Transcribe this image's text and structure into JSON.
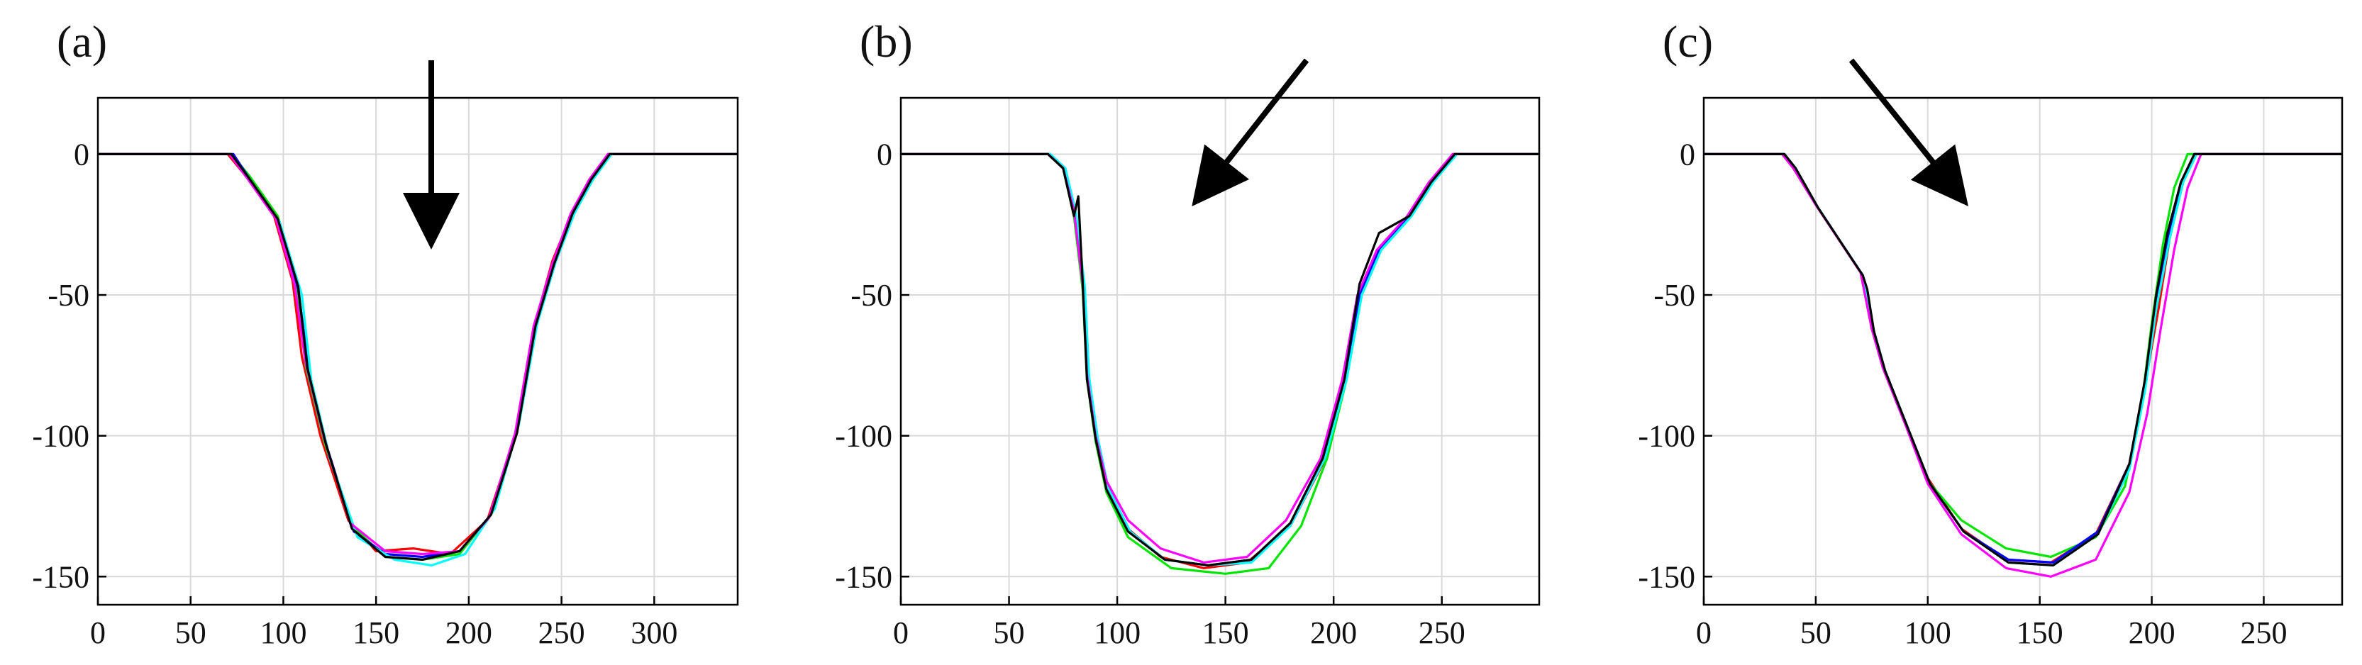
{
  "colors": {
    "red": "#ff0000",
    "green": "#00e600",
    "blue": "#0000ff",
    "cyan": "#00ffff",
    "magenta": "#ff00ff",
    "black": "#000000",
    "grid": "#d9d9d9",
    "arrow": "#000000"
  },
  "chart_data": [
    {
      "type": "line",
      "panel_label": "(a)",
      "arrow": "down",
      "grid": true,
      "xlim": [
        0,
        345
      ],
      "ylim": [
        -160,
        20
      ],
      "xticks": [
        0,
        50,
        100,
        150,
        200,
        250,
        300
      ],
      "yticks": [
        0,
        -50,
        -100,
        -150
      ],
      "series": [
        {
          "color": "red",
          "x": [
            0,
            70,
            80,
            95,
            105,
            110,
            120,
            135,
            150,
            170,
            190,
            210,
            225,
            235,
            245,
            255,
            265,
            275,
            345
          ],
          "y": [
            0,
            0,
            -8,
            -22,
            -45,
            -72,
            -100,
            -130,
            -141,
            -140,
            -142,
            -130,
            -100,
            -62,
            -38,
            -22,
            -10,
            0,
            0
          ]
        },
        {
          "color": "green",
          "x": [
            0,
            72,
            82,
            97,
            107,
            112,
            122,
            137,
            155,
            175,
            195,
            212,
            226,
            236,
            246,
            256,
            266,
            276,
            345
          ],
          "y": [
            0,
            0,
            -8,
            -22,
            -45,
            -75,
            -102,
            -132,
            -143,
            -144,
            -142,
            -128,
            -98,
            -60,
            -38,
            -20,
            -10,
            0,
            0
          ]
        },
        {
          "color": "blue",
          "x": [
            0,
            73,
            83,
            98,
            108,
            114,
            124,
            138,
            155,
            175,
            195,
            212,
            225,
            235,
            245,
            255,
            265,
            276,
            345
          ],
          "y": [
            0,
            0,
            -10,
            -24,
            -48,
            -78,
            -105,
            -134,
            -142,
            -143,
            -141,
            -128,
            -100,
            -62,
            -40,
            -22,
            -9,
            0,
            0
          ]
        },
        {
          "color": "cyan",
          "x": [
            0,
            72,
            82,
            98,
            110,
            115,
            125,
            140,
            160,
            180,
            198,
            214,
            227,
            237,
            247,
            257,
            267,
            277,
            345
          ],
          "y": [
            0,
            0,
            -9,
            -24,
            -50,
            -80,
            -108,
            -136,
            -144,
            -146,
            -142,
            -126,
            -96,
            -60,
            -38,
            -21,
            -9,
            0,
            0
          ]
        },
        {
          "color": "magenta",
          "x": [
            0,
            71,
            81,
            96,
            106,
            112,
            122,
            136,
            155,
            175,
            195,
            211,
            225,
            235,
            245,
            255,
            265,
            275,
            345
          ],
          "y": [
            0,
            0,
            -9,
            -23,
            -46,
            -74,
            -101,
            -131,
            -141,
            -142,
            -141,
            -129,
            -99,
            -61,
            -39,
            -21,
            -9,
            0,
            0
          ]
        },
        {
          "color": "black",
          "x": [
            0,
            72,
            82,
            97,
            108,
            113,
            123,
            137,
            155,
            175,
            195,
            212,
            226,
            236,
            246,
            256,
            266,
            276,
            345
          ],
          "y": [
            0,
            0,
            -9,
            -23,
            -47,
            -76,
            -103,
            -133,
            -143,
            -144,
            -141,
            -128,
            -99,
            -61,
            -39,
            -21,
            -9,
            0,
            0
          ]
        }
      ]
    },
    {
      "type": "line",
      "panel_label": "(b)",
      "arrow": "down-left",
      "grid": true,
      "xlim": [
        0,
        295
      ],
      "ylim": [
        -160,
        20
      ],
      "xticks": [
        0,
        50,
        100,
        150,
        200,
        250
      ],
      "yticks": [
        0,
        -50,
        -100,
        -150
      ],
      "series": [
        {
          "color": "red",
          "x": [
            0,
            68,
            75,
            80,
            84,
            86,
            90,
            95,
            105,
            120,
            140,
            160,
            180,
            195,
            205,
            212,
            220,
            235,
            245,
            255,
            295
          ],
          "y": [
            0,
            0,
            -5,
            -20,
            -45,
            -78,
            -100,
            -118,
            -133,
            -143,
            -147,
            -145,
            -132,
            -110,
            -82,
            -50,
            -35,
            -22,
            -10,
            0,
            0
          ]
        },
        {
          "color": "green",
          "x": [
            0,
            68,
            75,
            80,
            84,
            86,
            90,
            95,
            105,
            125,
            150,
            170,
            185,
            197,
            206,
            213,
            222,
            236,
            246,
            256,
            295
          ],
          "y": [
            0,
            0,
            -5,
            -22,
            -48,
            -80,
            -102,
            -120,
            -136,
            -147,
            -149,
            -147,
            -132,
            -108,
            -80,
            -50,
            -34,
            -22,
            -10,
            0,
            0
          ]
        },
        {
          "color": "blue",
          "x": [
            0,
            69,
            76,
            81,
            85,
            87,
            91,
            96,
            106,
            122,
            142,
            162,
            180,
            195,
            205,
            212,
            221,
            235,
            245,
            256,
            295
          ],
          "y": [
            0,
            0,
            -5,
            -22,
            -48,
            -80,
            -101,
            -119,
            -134,
            -144,
            -146,
            -144,
            -131,
            -108,
            -80,
            -50,
            -34,
            -22,
            -10,
            0,
            0
          ]
        },
        {
          "color": "cyan",
          "x": [
            0,
            69,
            76,
            81,
            85,
            87,
            91,
            96,
            106,
            122,
            142,
            162,
            180,
            196,
            206,
            213,
            222,
            236,
            246,
            257,
            295
          ],
          "y": [
            0,
            0,
            -5,
            -21,
            -47,
            -79,
            -101,
            -119,
            -134,
            -144,
            -146,
            -145,
            -132,
            -108,
            -80,
            -50,
            -34,
            -22,
            -10,
            0,
            0
          ]
        },
        {
          "color": "magenta",
          "x": [
            0,
            68,
            75,
            80,
            84,
            86,
            90,
            95,
            105,
            120,
            140,
            160,
            178,
            194,
            204,
            211,
            220,
            234,
            244,
            255,
            295
          ],
          "y": [
            0,
            0,
            -5,
            -20,
            -46,
            -78,
            -100,
            -116,
            -130,
            -140,
            -145,
            -143,
            -130,
            -108,
            -80,
            -50,
            -34,
            -22,
            -10,
            0,
            0
          ]
        },
        {
          "color": "black",
          "x": [
            0,
            68,
            75,
            80,
            82,
            84,
            86,
            90,
            95,
            105,
            122,
            142,
            162,
            180,
            195,
            205,
            212,
            221,
            235,
            245,
            256,
            295
          ],
          "y": [
            0,
            0,
            -5,
            -22,
            -15,
            -45,
            -80,
            -101,
            -119,
            -134,
            -144,
            -146,
            -144,
            -131,
            -108,
            -80,
            -46,
            -28,
            -22,
            -10,
            0,
            0
          ]
        }
      ]
    },
    {
      "type": "line",
      "panel_label": "(c)",
      "arrow": "down-right",
      "grid": true,
      "xlim": [
        0,
        285
      ],
      "ylim": [
        -160,
        20
      ],
      "xticks": [
        0,
        50,
        100,
        150,
        200,
        250
      ],
      "yticks": [
        0,
        -50,
        -100,
        -150
      ],
      "series": [
        {
          "color": "red",
          "x": [
            0,
            35,
            40,
            50,
            60,
            70,
            75,
            80,
            90,
            100,
            115,
            135,
            155,
            175,
            190,
            197,
            203,
            208,
            214,
            220,
            285
          ],
          "y": [
            0,
            0,
            -5,
            -18,
            -30,
            -42,
            -62,
            -75,
            -95,
            -115,
            -133,
            -144,
            -145,
            -135,
            -110,
            -82,
            -55,
            -30,
            -10,
            0,
            0
          ]
        },
        {
          "color": "green",
          "x": [
            0,
            35,
            40,
            50,
            60,
            70,
            75,
            80,
            90,
            100,
            115,
            135,
            155,
            175,
            188,
            195,
            200,
            205,
            210,
            216,
            285
          ],
          "y": [
            0,
            0,
            -5,
            -18,
            -30,
            -42,
            -62,
            -76,
            -96,
            -116,
            -130,
            -140,
            -143,
            -136,
            -118,
            -92,
            -60,
            -32,
            -12,
            0,
            0
          ]
        },
        {
          "color": "blue",
          "x": [
            0,
            36,
            41,
            51,
            61,
            71,
            76,
            81,
            91,
            101,
            116,
            136,
            156,
            176,
            190,
            197,
            202,
            207,
            213,
            219,
            285
          ],
          "y": [
            0,
            0,
            -5,
            -19,
            -31,
            -43,
            -63,
            -77,
            -97,
            -117,
            -134,
            -144,
            -145,
            -134,
            -110,
            -82,
            -54,
            -30,
            -10,
            0,
            0
          ]
        },
        {
          "color": "cyan",
          "x": [
            0,
            36,
            41,
            51,
            61,
            71,
            76,
            81,
            91,
            101,
            116,
            136,
            156,
            176,
            190,
            197,
            202,
            208,
            214,
            220,
            285
          ],
          "y": [
            0,
            0,
            -5,
            -19,
            -31,
            -43,
            -63,
            -77,
            -97,
            -117,
            -134,
            -145,
            -146,
            -135,
            -112,
            -84,
            -55,
            -30,
            -10,
            0,
            0
          ]
        },
        {
          "color": "magenta",
          "x": [
            0,
            35,
            40,
            50,
            60,
            70,
            75,
            80,
            90,
            100,
            115,
            135,
            155,
            175,
            190,
            198,
            204,
            210,
            216,
            222,
            285
          ],
          "y": [
            0,
            0,
            -5,
            -18,
            -30,
            -42,
            -62,
            -76,
            -96,
            -117,
            -135,
            -147,
            -150,
            -144,
            -120,
            -92,
            -62,
            -34,
            -12,
            0,
            0
          ]
        },
        {
          "color": "black",
          "x": [
            0,
            36,
            41,
            51,
            61,
            71,
            73,
            76,
            81,
            91,
            101,
            116,
            136,
            156,
            176,
            190,
            197,
            202,
            207,
            213,
            219,
            285
          ],
          "y": [
            0,
            0,
            -5,
            -19,
            -31,
            -43,
            -48,
            -63,
            -77,
            -97,
            -117,
            -134,
            -145,
            -146,
            -135,
            -110,
            -80,
            -50,
            -28,
            -10,
            0,
            0
          ]
        }
      ]
    }
  ]
}
